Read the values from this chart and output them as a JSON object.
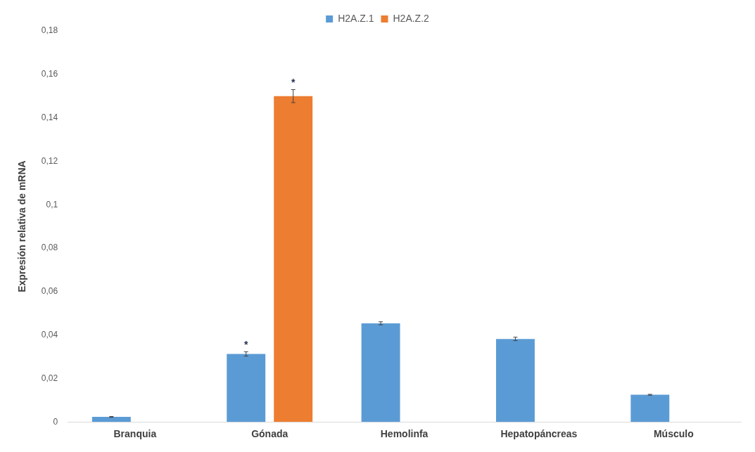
{
  "chart_data": {
    "type": "bar",
    "ylabel": "Expresión relativa de mRNA",
    "categories": [
      "Branquia",
      "Gónada",
      "Hemolinfa",
      "Hepatopáncreas",
      "Músculo"
    ],
    "series": [
      {
        "name": "H2A.Z.1",
        "color": "#5b9bd5",
        "values": [
          0.0023,
          0.0313,
          0.0454,
          0.0382,
          0.0125
        ],
        "errors": [
          0.0002,
          0.001,
          0.0007,
          0.0008,
          0.0002
        ],
        "value_labels": [
          null,
          "*",
          null,
          null,
          null
        ]
      },
      {
        "name": "H2A.Z.2",
        "color": "#ed7d31",
        "values": [
          null,
          0.15,
          null,
          null,
          null
        ],
        "errors": [
          null,
          0.003,
          null,
          null,
          null
        ],
        "value_labels": [
          null,
          "*",
          null,
          null,
          null
        ]
      }
    ],
    "ylim": [
      0,
      0.18
    ],
    "yticks": [
      {
        "value": 0,
        "label": "0"
      },
      {
        "value": 0.02,
        "label": "0,02"
      },
      {
        "value": 0.04,
        "label": "0,04"
      },
      {
        "value": 0.06,
        "label": "0,06"
      },
      {
        "value": 0.08,
        "label": "0,08"
      },
      {
        "value": 0.1,
        "label": "0,1"
      },
      {
        "value": 0.12,
        "label": "0,12"
      },
      {
        "value": 0.14,
        "label": "0,14"
      },
      {
        "value": 0.16,
        "label": "0,16"
      },
      {
        "value": 0.18,
        "label": "0,18"
      }
    ],
    "grid": false,
    "legend": "top"
  }
}
